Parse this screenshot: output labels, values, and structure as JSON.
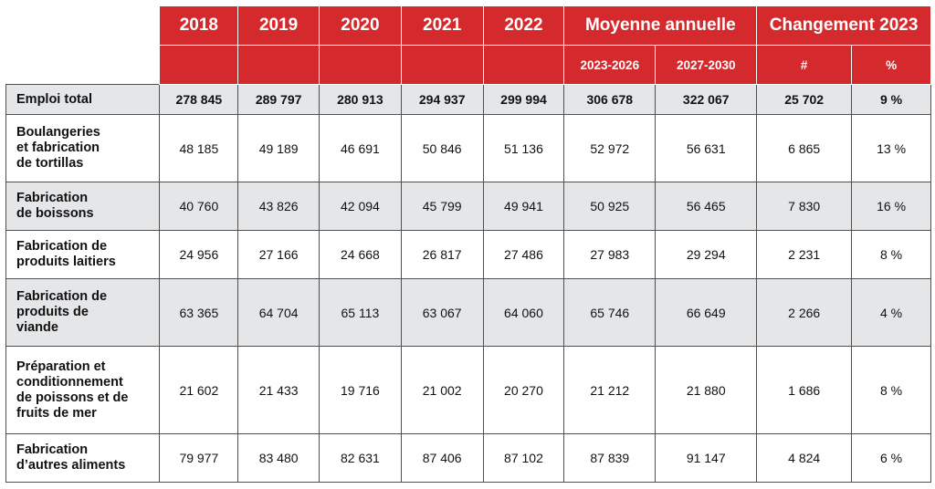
{
  "header": {
    "years": [
      "2018",
      "2019",
      "2020",
      "2021",
      "2022"
    ],
    "moyenne": "Moyenne annuelle",
    "changement": "Changement 2023",
    "moyenne_sub": [
      "2023-2026",
      "2027-2030"
    ],
    "changement_sub": [
      "#",
      "%"
    ]
  },
  "rows": [
    {
      "label": [
        "Emploi total"
      ],
      "values": [
        "278 845",
        "289 797",
        "280 913",
        "294 937",
        "299 994",
        "306 678",
        "322 067",
        "25 702",
        "9 %"
      ]
    },
    {
      "label": [
        "Boulangeries",
        "et fabrication",
        "de tortillas"
      ],
      "values": [
        "48 185",
        "49 189",
        "46 691",
        "50 846",
        "51 136",
        "52 972",
        "56 631",
        "6 865",
        "13 %"
      ]
    },
    {
      "label": [
        "Fabrication",
        "de boissons"
      ],
      "values": [
        "40 760",
        "43 826",
        "42 094",
        "45 799",
        "49 941",
        "50 925",
        "56 465",
        "7 830",
        "16 %"
      ]
    },
    {
      "label": [
        "Fabrication de",
        "produits laitiers"
      ],
      "values": [
        "24 956",
        "27 166",
        "24 668",
        "26 817",
        "27 486",
        "27 983",
        "29 294",
        "2 231",
        "8 %"
      ]
    },
    {
      "label": [
        "Fabrication de",
        "produits de",
        "viande"
      ],
      "values": [
        "63 365",
        "64 704",
        "65 113",
        "63 067",
        "64 060",
        "65 746",
        "66 649",
        "2 266",
        "4 %"
      ]
    },
    {
      "label": [
        "Préparation et",
        "conditionnement",
        "de poissons et de",
        "fruits de mer"
      ],
      "values": [
        "21 602",
        "21 433",
        "19 716",
        "21 002",
        "20 270",
        "21 212",
        "21 880",
        "1 686",
        "8 %"
      ]
    },
    {
      "label": [
        "Fabrication",
        "d’autres aliments"
      ],
      "values": [
        "79 977",
        "83 480",
        "82 631",
        "87 406",
        "87 102",
        "87 839",
        "91 147",
        "4 824",
        "6 %"
      ]
    }
  ]
}
